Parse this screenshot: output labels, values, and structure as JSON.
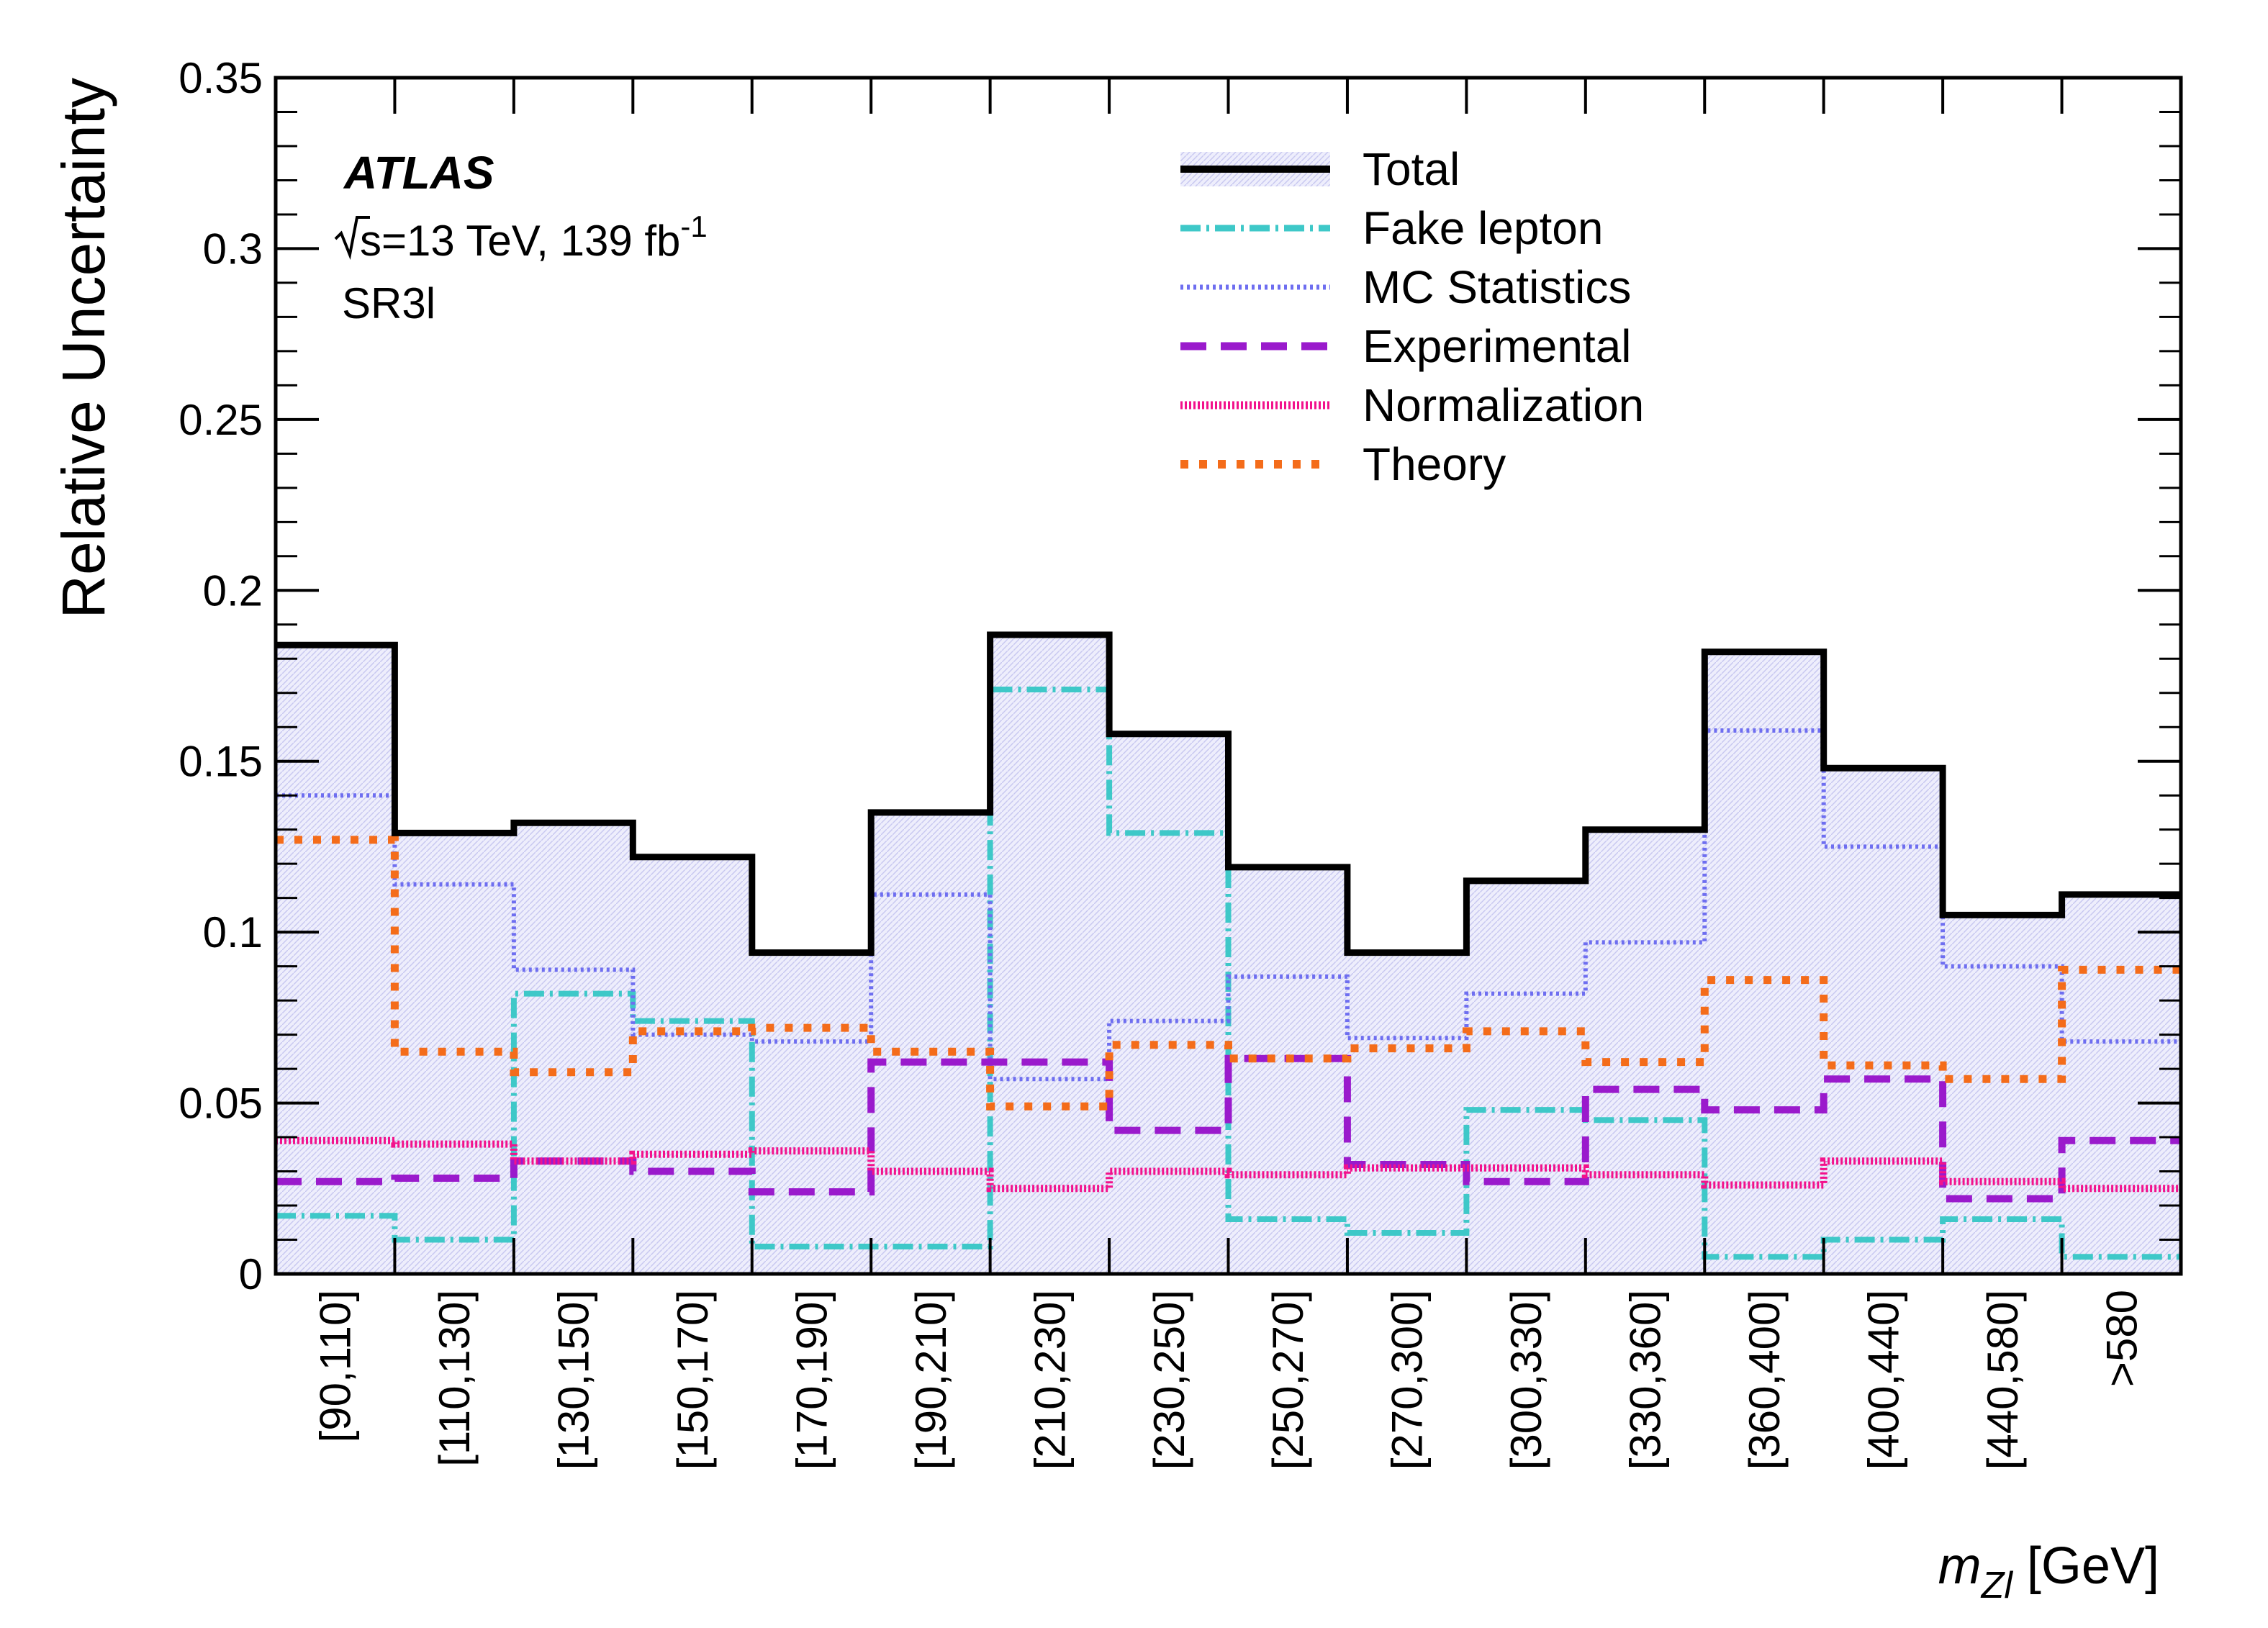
{
  "chart_data": {
    "type": "step",
    "categories": [
      "[90,110]",
      "[110,130]",
      "[130,150]",
      "[150,170]",
      "[170,190]",
      "[190,210]",
      "[210,230]",
      "[230,250]",
      "[250,270]",
      "[270,300]",
      "[300,330]",
      "[330,360]",
      "[360,400]",
      "[400,440]",
      "[440,580]",
      ">580"
    ],
    "ylabel": "Relative Uncertainty",
    "xlabel": {
      "var": "m",
      "sub": "Zl",
      "unit": "[GeV]"
    },
    "ylim": [
      0,
      0.35
    ],
    "yticks": [
      "0",
      "0.05",
      "0.1",
      "0.15",
      "0.2",
      "0.25",
      "0.3",
      "0.35"
    ],
    "annotations": {
      "experiment": "ATLAS",
      "energy_prefix": "s",
      "energy_text": "=13 TeV, 139 fb",
      "energy_sup": "-1",
      "region": "SR3l"
    },
    "legend_position": "top-center",
    "series": [
      {
        "name": "Total",
        "color": "#000000",
        "style": "solid-with-band",
        "values": [
          0.184,
          0.129,
          0.132,
          0.122,
          0.094,
          0.135,
          0.187,
          0.158,
          0.119,
          0.094,
          0.115,
          0.13,
          0.182,
          0.148,
          0.105,
          0.111
        ]
      },
      {
        "name": "Fake lepton",
        "color": "#3ec8c8",
        "style": "dash-dot",
        "values": [
          0.017,
          0.01,
          0.082,
          0.074,
          0.008,
          0.008,
          0.171,
          0.129,
          0.016,
          0.012,
          0.048,
          0.045,
          0.005,
          0.01,
          0.016,
          0.005
        ]
      },
      {
        "name": "MC Statistics",
        "color": "#6e6ef0",
        "style": "dotted",
        "values": [
          0.14,
          0.114,
          0.089,
          0.07,
          0.068,
          0.111,
          0.057,
          0.074,
          0.087,
          0.069,
          0.082,
          0.097,
          0.159,
          0.125,
          0.09,
          0.068
        ]
      },
      {
        "name": "Experimental",
        "color": "#9a1acc",
        "style": "dashed",
        "values": [
          0.027,
          0.028,
          0.033,
          0.03,
          0.024,
          0.062,
          0.062,
          0.042,
          0.063,
          0.032,
          0.027,
          0.054,
          0.048,
          0.057,
          0.022,
          0.039
        ]
      },
      {
        "name": "Normalization",
        "color": "#f2128c",
        "style": "dense-dotted",
        "values": [
          0.039,
          0.038,
          0.033,
          0.035,
          0.036,
          0.03,
          0.025,
          0.03,
          0.029,
          0.031,
          0.031,
          0.029,
          0.026,
          0.033,
          0.027,
          0.025
        ]
      },
      {
        "name": "Theory",
        "color": "#f46c1a",
        "style": "square-dotted",
        "values": [
          0.127,
          0.065,
          0.059,
          0.071,
          0.072,
          0.065,
          0.049,
          0.067,
          0.063,
          0.066,
          0.071,
          0.062,
          0.086,
          0.061,
          0.057,
          0.089
        ]
      }
    ]
  }
}
